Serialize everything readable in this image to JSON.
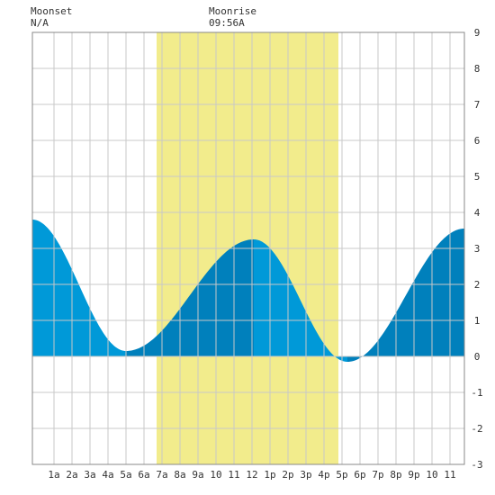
{
  "moon": {
    "moonset_label": "Moonset",
    "moonset_time": "N/A",
    "moonrise_label": "Moonrise",
    "moonrise_time": "09:56A"
  },
  "colors": {
    "daylight": "#f2ec8c",
    "rising": "#0099d8",
    "falling": "#0080bc",
    "grid": "#c8c8c8",
    "axis": "#888888",
    "text": "#333333"
  },
  "chart_data": {
    "type": "area",
    "x_unit": "hour of day",
    "xlim": [
      -0.2,
      23.8
    ],
    "ylim": [
      -3,
      9
    ],
    "x_tick_labels": [
      "1a",
      "2a",
      "3a",
      "4a",
      "5a",
      "6a",
      "7a",
      "8a",
      "9a",
      "10",
      "11",
      "12",
      "1p",
      "2p",
      "3p",
      "4p",
      "5p",
      "6p",
      "7p",
      "8p",
      "9p",
      "10",
      "11"
    ],
    "y_ticks": [
      -3,
      -2,
      -1,
      0,
      1,
      2,
      3,
      4,
      5,
      6,
      7,
      8,
      9
    ],
    "grid": true,
    "daylight_band": [
      6.7,
      16.8
    ],
    "tide_extrema": [
      {
        "hour": -0.2,
        "height": 3.8,
        "kind": "high"
      },
      {
        "hour": 5.0,
        "height": 0.15,
        "kind": "low"
      },
      {
        "hour": 12.1,
        "height": 3.25,
        "kind": "high"
      },
      {
        "hour": 17.3,
        "height": -0.15,
        "kind": "low"
      },
      {
        "hour": 23.8,
        "height": 3.55,
        "kind": "high"
      }
    ]
  }
}
